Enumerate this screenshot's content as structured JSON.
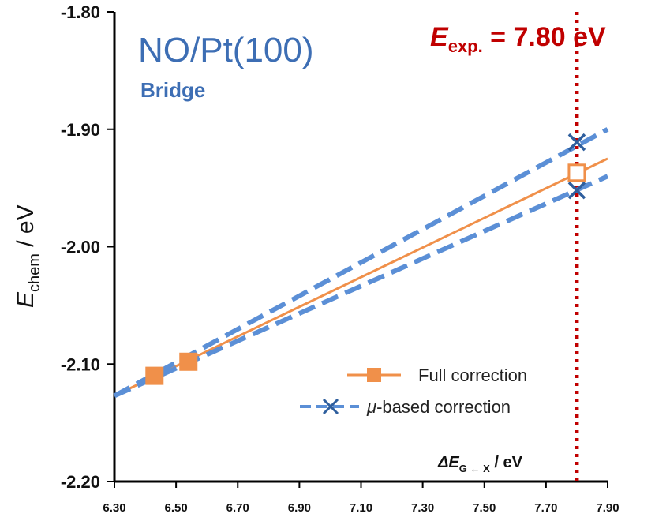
{
  "chart_data": {
    "type": "line",
    "title": "NO/Pt(100)",
    "subtitle": "Bridge",
    "ylabel": {
      "main": "E",
      "sub": "chem",
      "unit": " / eV"
    },
    "xlabel": {
      "main": "ΔE",
      "sub": "G ← X",
      "unit": " / eV"
    },
    "xlim": [
      6.3,
      7.9
    ],
    "ylim": [
      -2.2,
      -1.8
    ],
    "x_ticks": [
      "6.30",
      "6.50",
      "6.70",
      "6.90",
      "7.10",
      "7.30",
      "7.50",
      "7.70",
      "7.90"
    ],
    "y_ticks": [
      "-1.80",
      "-1.90",
      "-2.00",
      "-2.10",
      "-2.20"
    ],
    "reference_line": {
      "x": 7.8,
      "label_main": "E",
      "label_sub": "exp.",
      "label_value": " = 7.80 eV",
      "color": "#c00000"
    },
    "series": [
      {
        "name": "Full correction",
        "color": "#f0904a",
        "marker": "square",
        "line": {
          "x": [
            6.3,
            7.9
          ],
          "y": [
            -2.127,
            -1.925
          ]
        },
        "points": [
          {
            "x": 6.43,
            "y": -2.11,
            "filled": true
          },
          {
            "x": 6.54,
            "y": -2.098,
            "filled": true
          },
          {
            "x": 7.8,
            "y": -1.937,
            "filled": false
          }
        ]
      },
      {
        "name": "μ-based correction (upper)",
        "color": "#5b8fd6",
        "marker": "x",
        "line": {
          "x": [
            6.3,
            7.9
          ],
          "y": [
            -2.127,
            -1.9
          ]
        },
        "points": [
          {
            "x": 7.8,
            "y": -1.911
          }
        ]
      },
      {
        "name": "μ-based correction (lower)",
        "color": "#5b8fd6",
        "marker": "x",
        "line": {
          "x": [
            6.3,
            7.9
          ],
          "y": [
            -2.127,
            -1.94
          ]
        },
        "points": [
          {
            "x": 7.8,
            "y": -1.952
          }
        ]
      }
    ],
    "legend": {
      "position": "bottom-right",
      "entries": [
        {
          "label": "Full correction",
          "marker": "square",
          "color": "#f0904a",
          "mu_prefix": "",
          "rest": "Full correction"
        },
        {
          "label": "μ-based correction",
          "marker": "x",
          "color": "#5b8fd6",
          "mu_prefix": "μ",
          "rest": "-based correction"
        }
      ]
    }
  }
}
